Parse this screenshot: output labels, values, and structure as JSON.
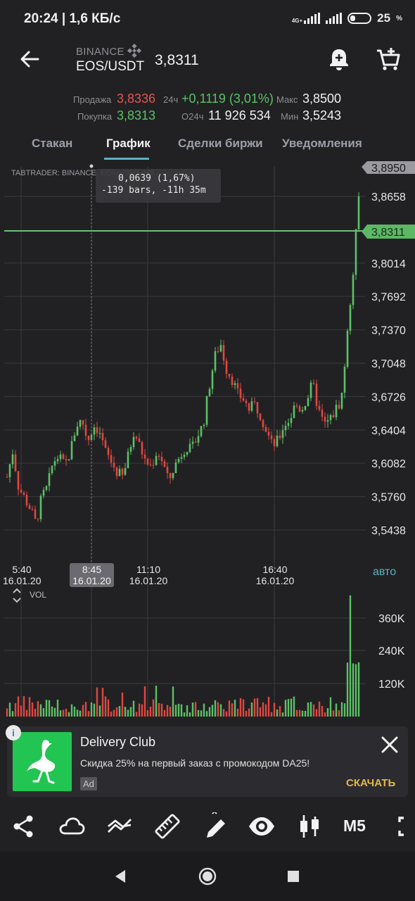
{
  "status": {
    "time": "20:24 | 1,6 КБ/с",
    "network": "4G+",
    "battery": "25",
    "battery_unit": "%"
  },
  "header": {
    "exchange": "BINANCE",
    "pair": "EOS/USDT",
    "last_price": "3,8311"
  },
  "stats": {
    "sell_label": "Продажа",
    "sell_value": "3,8336",
    "buy_label": "Покупка",
    "buy_value": "3,8313",
    "change_label": "24ч",
    "change_value": "+0,1119 (3,01%)",
    "volume_label": "О24ч",
    "volume_value": "11 926 534",
    "max_label": "Макс",
    "max_value": "3,8500",
    "min_label": "Мин",
    "min_value": "3,5243"
  },
  "tabs": [
    {
      "label": "Стакан"
    },
    {
      "label": "График"
    },
    {
      "label": "Сделки биржи"
    },
    {
      "label": "Уведомления"
    }
  ],
  "chart": {
    "source_label": "TABTRADER: BINANCE, EOS/USDT, M5",
    "measure_line1": "0,0639 (1,67%)",
    "measure_line2": "-139 bars, -11h 35m",
    "top_badge": "3,8950",
    "current_badge": "3,8311",
    "price_ticks": [
      "3,8658",
      "3,8014",
      "3,7692",
      "3,7370",
      "3,7048",
      "3,6726",
      "3,6404",
      "3,6082",
      "3,5760",
      "3,5438"
    ],
    "time_labels": [
      {
        "time": "5:40",
        "date": "16.01.20"
      },
      {
        "time": "8:45",
        "date": "16.01.20"
      },
      {
        "time": "11:10",
        "date": "16.01.20"
      },
      {
        "time": "16:40",
        "date": "16.01.20"
      }
    ],
    "auto_label": "авто",
    "vol_label": "VOL",
    "vol_ticks": [
      "360K",
      "240K",
      "120K"
    ]
  },
  "chart_data": {
    "type": "candlestick",
    "title": "TABTRADER: BINANCE, EOS/USDT, M5",
    "ylim": [
      3.52,
      3.895
    ],
    "current_price": 3.8311,
    "x_ticks": [
      "5:40",
      "8:45",
      "11:10",
      "16:40"
    ],
    "close_path": [
      3.595,
      3.62,
      3.585,
      3.575,
      3.565,
      3.55,
      3.575,
      3.585,
      3.61,
      3.615,
      3.605,
      3.62,
      3.645,
      3.65,
      3.63,
      3.645,
      3.64,
      3.62,
      3.61,
      3.6,
      3.595,
      3.615,
      3.64,
      3.625,
      3.61,
      3.605,
      3.62,
      3.61,
      3.59,
      3.605,
      3.615,
      3.625,
      3.62,
      3.635,
      3.645,
      3.68,
      3.71,
      3.725,
      3.7,
      3.69,
      3.675,
      3.67,
      3.66,
      3.665,
      3.655,
      3.64,
      3.625,
      3.63,
      3.645,
      3.65,
      3.665,
      3.66,
      3.67,
      3.685,
      3.66,
      3.645,
      3.65,
      3.66,
      3.67,
      3.73,
      3.79,
      3.865
    ],
    "volume_ticks": [
      120000,
      240000,
      360000
    ],
    "volume_max": 460000
  },
  "ad": {
    "title": "Delivery Club",
    "text": "Скидка 25% на первый заказ с промокодом DA25!",
    "badge": "Ad",
    "cta": "СКАЧАТЬ",
    "info": "i"
  },
  "toolbar": {
    "timeframe": "M5"
  }
}
